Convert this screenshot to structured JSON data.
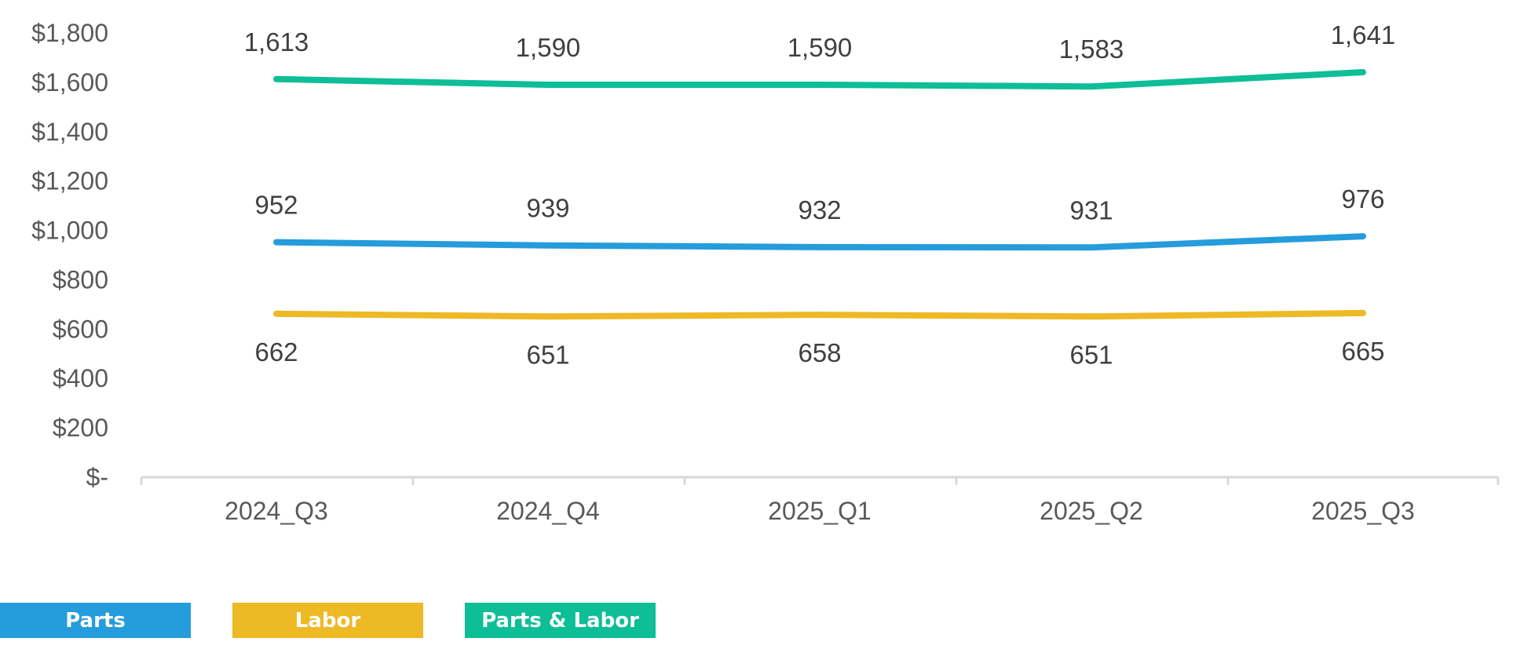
{
  "chart_data": {
    "type": "line",
    "categories": [
      "2024_Q3",
      "2024_Q4",
      "2025_Q1",
      "2025_Q2",
      "2025_Q3"
    ],
    "series": [
      {
        "name": "Parts",
        "values": [
          952,
          939,
          932,
          931,
          976
        ],
        "labels": [
          "952",
          "939",
          "932",
          "931",
          "976"
        ],
        "color": "#259CDB",
        "label_position": "above"
      },
      {
        "name": "Labor",
        "values": [
          662,
          651,
          658,
          651,
          665
        ],
        "labels": [
          "662",
          "651",
          "658",
          "651",
          "665"
        ],
        "color": "#EDB925",
        "label_position": "below"
      },
      {
        "name": "Parts & Labor",
        "values": [
          1613,
          1590,
          1590,
          1583,
          1641
        ],
        "labels": [
          "1,613",
          "1,590",
          "1,590",
          "1,583",
          "1,641"
        ],
        "color": "#0DBE96",
        "label_position": "above"
      }
    ],
    "y_ticks": [
      0,
      200,
      400,
      600,
      800,
      1000,
      1200,
      1400,
      1600,
      1800
    ],
    "y_tick_labels": [
      "$-",
      "$200",
      "$400",
      "$600",
      "$800",
      "$1,000",
      "$1,200",
      "$1,400",
      "$1,600",
      "$1,800"
    ],
    "ylim": [
      0,
      1800
    ],
    "grid": false,
    "legend_position": "bottom-left"
  }
}
